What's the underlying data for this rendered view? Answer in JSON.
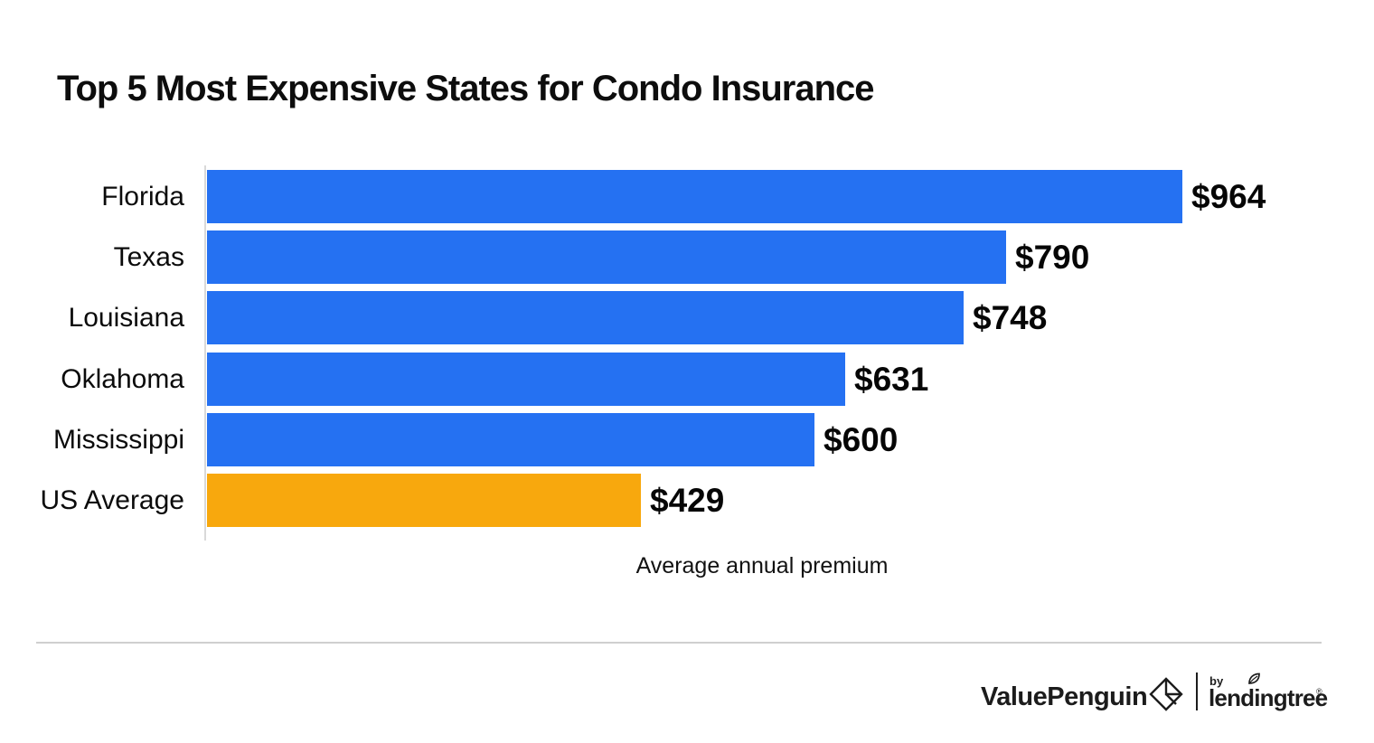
{
  "title": "Top 5 Most Expensive States for Condo Insurance",
  "chart_data": {
    "type": "bar",
    "orientation": "horizontal",
    "title": "Top 5 Most Expensive States for Condo Insurance",
    "categories": [
      "Florida",
      "Texas",
      "Louisiana",
      "Oklahoma",
      "Mississippi",
      "US Average"
    ],
    "values": [
      964,
      790,
      748,
      631,
      600,
      429
    ],
    "value_labels": [
      "$964",
      "$790",
      "$748",
      "$631",
      "$600",
      "$429"
    ],
    "xlabel": "Average annual premium",
    "ylabel": "",
    "xlim": [
      0,
      964
    ],
    "grid": "off",
    "legend": "none",
    "bar_color": "#2571f2",
    "highlight_color": "#f8a80d",
    "highlight_index": 5,
    "axis_line_color": "#d9d9d9",
    "value_prefix": "$"
  },
  "footer": {
    "brand": "ValuePenguin",
    "by_label": "by",
    "partner": "lendingtree",
    "registered_mark": "®",
    "logo_color": "#1c1c1c"
  },
  "icons": {
    "brand_mark": "valuepenguin-diamond-icon",
    "partner_mark": "lendingtree-leaf-icon"
  }
}
